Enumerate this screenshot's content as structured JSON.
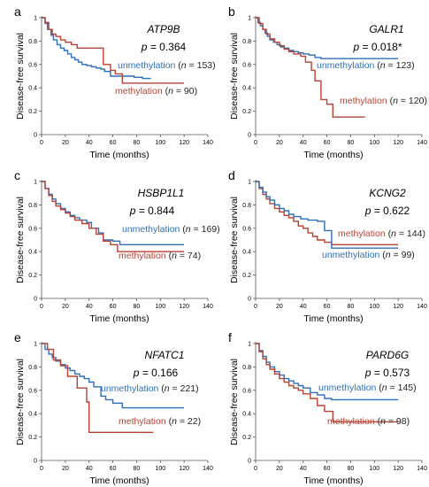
{
  "chart_data": [
    {
      "type": "line",
      "panel": "a",
      "gene": "ATP9B",
      "p_label": "p",
      "p_value": "= 0.364",
      "xlabel": "Time (months)",
      "ylabel": "Disease-free survival",
      "xlim": [
        0,
        140
      ],
      "ylim": [
        0,
        1
      ],
      "xticks": [
        0,
        20,
        40,
        60,
        80,
        100,
        120,
        140
      ],
      "yticks": [
        0,
        0.2,
        0.4,
        0.6,
        0.8,
        1
      ],
      "series": [
        {
          "name": "unmethylation",
          "n_label": "(n = 153)",
          "color": "#2e6fba",
          "x": [
            0,
            3,
            5,
            8,
            10,
            13,
            16,
            19,
            22,
            25,
            28,
            31,
            34,
            38,
            42,
            46,
            50,
            53,
            58,
            65,
            70,
            78,
            85,
            92
          ],
          "y": [
            1,
            0.95,
            0.9,
            0.85,
            0.81,
            0.77,
            0.74,
            0.72,
            0.69,
            0.66,
            0.64,
            0.62,
            0.6,
            0.59,
            0.58,
            0.57,
            0.56,
            0.54,
            0.5,
            0.5,
            0.5,
            0.49,
            0.48,
            0.48
          ]
        },
        {
          "name": "methylation",
          "n_label": "(n = 90)",
          "color": "#b84234",
          "x": [
            0,
            3,
            6,
            9,
            12,
            16,
            20,
            25,
            30,
            35,
            48,
            52,
            58,
            62,
            68,
            120
          ],
          "y": [
            1,
            0.96,
            0.9,
            0.86,
            0.84,
            0.81,
            0.79,
            0.77,
            0.74,
            0.74,
            0.74,
            0.6,
            0.55,
            0.52,
            0.44,
            0.44
          ]
        }
      ]
    },
    {
      "type": "line",
      "panel": "b",
      "gene": "GALR1",
      "p_label": "p",
      "p_value": "= 0.018*",
      "xlabel": "Time (months)",
      "ylabel": "Disease-free survival",
      "xlim": [
        0,
        140
      ],
      "ylim": [
        0,
        1
      ],
      "xticks": [
        0,
        20,
        40,
        60,
        80,
        100,
        120,
        140
      ],
      "yticks": [
        0,
        0.2,
        0.4,
        0.6,
        0.8,
        1
      ],
      "series": [
        {
          "name": "unmethylation",
          "n_label": "(n = 123)",
          "color": "#2e6fba",
          "x": [
            0,
            2,
            4,
            6,
            8,
            10,
            12,
            15,
            18,
            21,
            24,
            28,
            32,
            36,
            40,
            45,
            50,
            55,
            120
          ],
          "y": [
            1,
            0.96,
            0.93,
            0.9,
            0.87,
            0.84,
            0.81,
            0.79,
            0.77,
            0.75,
            0.74,
            0.72,
            0.71,
            0.7,
            0.69,
            0.68,
            0.66,
            0.65,
            0.65
          ]
        },
        {
          "name": "methylation",
          "n_label": "(n = 120)",
          "color": "#b84234",
          "x": [
            0,
            3,
            6,
            9,
            12,
            16,
            20,
            24,
            28,
            32,
            38,
            42,
            47,
            50,
            55,
            60,
            65,
            92
          ],
          "y": [
            1,
            0.95,
            0.9,
            0.86,
            0.82,
            0.79,
            0.76,
            0.73,
            0.71,
            0.69,
            0.67,
            0.62,
            0.55,
            0.46,
            0.3,
            0.26,
            0.15,
            0.15
          ]
        }
      ]
    },
    {
      "type": "line",
      "panel": "c",
      "gene": "HSBP1L1",
      "p_label": "p",
      "p_value": "= 0.844",
      "xlabel": "Time (months)",
      "ylabel": "Disease-free survival",
      "xlim": [
        0,
        140
      ],
      "ylim": [
        0,
        1
      ],
      "xticks": [
        0,
        20,
        40,
        60,
        80,
        100,
        120,
        140
      ],
      "yticks": [
        0,
        0.2,
        0.4,
        0.6,
        0.8,
        1
      ],
      "series": [
        {
          "name": "unmethylation",
          "n_label": "(n = 169)",
          "color": "#2e6fba",
          "x": [
            0,
            3,
            6,
            9,
            12,
            16,
            20,
            24,
            28,
            32,
            38,
            42,
            48,
            52,
            60,
            66,
            120
          ],
          "y": [
            1,
            0.94,
            0.89,
            0.85,
            0.81,
            0.77,
            0.74,
            0.71,
            0.69,
            0.67,
            0.65,
            0.6,
            0.56,
            0.5,
            0.49,
            0.46,
            0.46
          ]
        },
        {
          "name": "methylation",
          "n_label": "(n = 74)",
          "color": "#b84234",
          "x": [
            0,
            3,
            6,
            9,
            12,
            16,
            20,
            24,
            28,
            34,
            40,
            46,
            52,
            58,
            64,
            120
          ],
          "y": [
            1,
            0.94,
            0.88,
            0.83,
            0.79,
            0.76,
            0.73,
            0.7,
            0.67,
            0.64,
            0.6,
            0.55,
            0.49,
            0.46,
            0.4,
            0.4
          ]
        }
      ]
    },
    {
      "type": "line",
      "panel": "d",
      "gene": "KCNG2",
      "p_label": "p",
      "p_value": "= 0.622",
      "xlabel": "Time (months)",
      "ylabel": "Disease-free survival",
      "xlim": [
        0,
        140
      ],
      "ylim": [
        0,
        1
      ],
      "xticks": [
        0,
        20,
        40,
        60,
        80,
        100,
        120,
        140
      ],
      "yticks": [
        0,
        0.2,
        0.4,
        0.6,
        0.8,
        1
      ],
      "series": [
        {
          "name": "methylation",
          "n_label": "(n = 144)",
          "color": "#b84234",
          "x": [
            0,
            3,
            6,
            9,
            12,
            16,
            20,
            24,
            28,
            32,
            36,
            40,
            44,
            48,
            52,
            58,
            64,
            120
          ],
          "y": [
            1,
            0.94,
            0.89,
            0.85,
            0.81,
            0.77,
            0.74,
            0.71,
            0.69,
            0.66,
            0.62,
            0.6,
            0.56,
            0.53,
            0.5,
            0.48,
            0.46,
            0.46
          ]
        },
        {
          "name": "unmethylation",
          "n_label": "(n = 99)",
          "color": "#2e6fba",
          "x": [
            0,
            3,
            6,
            9,
            12,
            16,
            20,
            24,
            28,
            32,
            38,
            44,
            52,
            58,
            64,
            120
          ],
          "y": [
            1,
            0.95,
            0.91,
            0.87,
            0.84,
            0.8,
            0.77,
            0.75,
            0.72,
            0.7,
            0.68,
            0.67,
            0.66,
            0.58,
            0.43,
            0.43
          ]
        }
      ]
    },
    {
      "type": "line",
      "panel": "e",
      "gene": "NFATC1",
      "p_label": "p",
      "p_value": "= 0.166",
      "xlabel": "Time (months)",
      "ylabel": "Disease-free survival",
      "xlim": [
        0,
        140
      ],
      "ylim": [
        0,
        1
      ],
      "xticks": [
        0,
        20,
        40,
        60,
        80,
        100,
        120,
        140
      ],
      "yticks": [
        0,
        0.2,
        0.4,
        0.6,
        0.8,
        1
      ],
      "series": [
        {
          "name": "unmethylation",
          "n_label": "(n = 221)",
          "color": "#2e6fba",
          "x": [
            0,
            3,
            6,
            9,
            12,
            16,
            20,
            24,
            28,
            32,
            36,
            40,
            44,
            50,
            54,
            60,
            68,
            120
          ],
          "y": [
            1,
            0.95,
            0.91,
            0.88,
            0.85,
            0.82,
            0.79,
            0.77,
            0.74,
            0.72,
            0.7,
            0.67,
            0.63,
            0.55,
            0.52,
            0.49,
            0.45,
            0.45
          ]
        },
        {
          "name": "methylation",
          "n_label": "(n = 22)",
          "color": "#b84234",
          "x": [
            0,
            5,
            10,
            16,
            22,
            30,
            38,
            40,
            94
          ],
          "y": [
            1,
            0.95,
            0.86,
            0.81,
            0.72,
            0.62,
            0.5,
            0.24,
            0.24
          ]
        }
      ]
    },
    {
      "type": "line",
      "panel": "f",
      "gene": "PARD6G",
      "p_label": "p",
      "p_value": "= 0.573",
      "xlabel": "Time (months)",
      "ylabel": "Disease-free survival",
      "xlim": [
        0,
        140
      ],
      "ylim": [
        0,
        1
      ],
      "xticks": [
        0,
        20,
        40,
        60,
        80,
        100,
        120,
        140
      ],
      "yticks": [
        0,
        0.2,
        0.4,
        0.6,
        0.8,
        1
      ],
      "series": [
        {
          "name": "unmethylation",
          "n_label": "(n = 145)",
          "color": "#2e6fba",
          "x": [
            0,
            3,
            6,
            9,
            12,
            16,
            20,
            24,
            28,
            32,
            36,
            40,
            46,
            52,
            58,
            64,
            120
          ],
          "y": [
            1,
            0.94,
            0.89,
            0.84,
            0.8,
            0.76,
            0.73,
            0.7,
            0.68,
            0.66,
            0.64,
            0.62,
            0.58,
            0.56,
            0.53,
            0.52,
            0.52
          ]
        },
        {
          "name": "methylation",
          "n_label": "(n = 98)",
          "color": "#b84234",
          "x": [
            0,
            3,
            6,
            9,
            12,
            16,
            20,
            24,
            28,
            32,
            36,
            40,
            46,
            52,
            58,
            65,
            120
          ],
          "y": [
            1,
            0.93,
            0.87,
            0.82,
            0.78,
            0.74,
            0.7,
            0.67,
            0.64,
            0.62,
            0.6,
            0.57,
            0.53,
            0.47,
            0.42,
            0.33,
            0.33
          ]
        }
      ]
    }
  ]
}
